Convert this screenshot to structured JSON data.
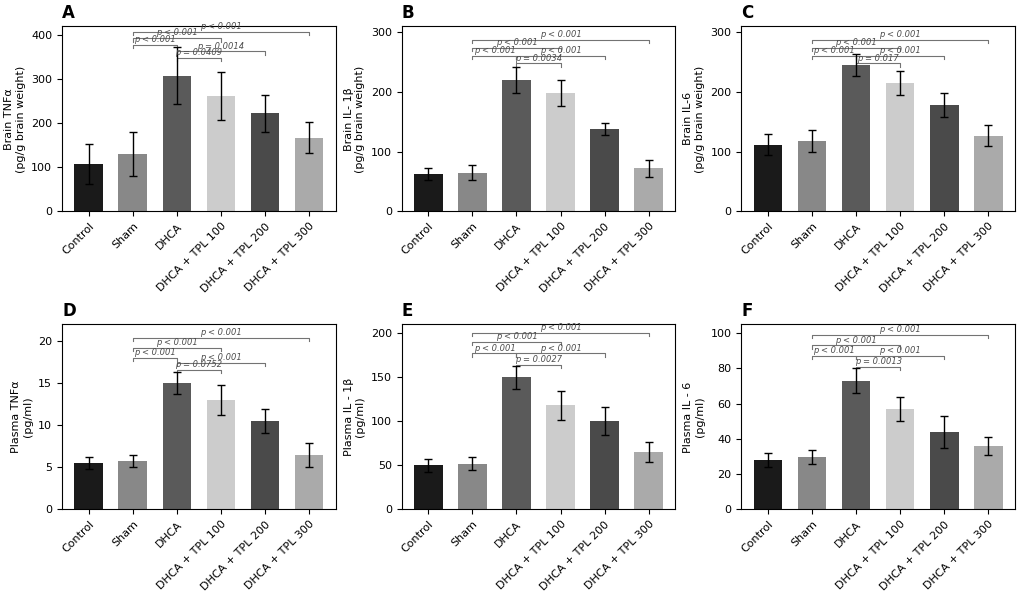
{
  "chart_data": [
    {
      "type": "bar",
      "title": "A",
      "ylabel": "Brain TNFα\n(pg/g brain weight)",
      "categories": [
        "Control",
        "Sham",
        "DHCA",
        "DHCA + TPL 100",
        "DHCA + TPL 200",
        "DHCA + TPL 300"
      ],
      "values": [
        108,
        130,
        308,
        262,
        223,
        167
      ],
      "errors": [
        45,
        50,
        65,
        55,
        42,
        35
      ],
      "colors": [
        "#1a1a1a",
        "#888888",
        "#5a5a5a",
        "#cccccc",
        "#4a4a4a",
        "#aaaaaa"
      ],
      "ylim": [
        0,
        420
      ],
      "yticks": [
        0,
        100,
        200,
        300,
        400
      ],
      "annotations": [
        {
          "from": "Sham",
          "to": "DHCA",
          "y": 378,
          "text": "p < 0.001"
        },
        {
          "from": "Sham",
          "to": "DHCA + TPL 100",
          "y": 393,
          "text": "p < 0.001"
        },
        {
          "from": "DHCA",
          "to": "DHCA + TPL 100",
          "y": 348,
          "text": "p = 0.0409"
        },
        {
          "from": "DHCA",
          "to": "DHCA + TPL 200",
          "y": 363,
          "text": "p = 0.0014"
        },
        {
          "from": "Sham",
          "to": "DHCA + TPL 300",
          "y": 408,
          "text": "p < 0.001"
        }
      ]
    },
    {
      "type": "bar",
      "title": "B",
      "ylabel": "Brain IL- 1β\n(pg/g brain weight)",
      "categories": [
        "Control",
        "Sham",
        "DHCA",
        "DHCA + TPL 100",
        "DHCA + TPL 200",
        "DHCA + TPL 300"
      ],
      "values": [
        62,
        65,
        220,
        198,
        138,
        72
      ],
      "errors": [
        10,
        12,
        22,
        22,
        10,
        14
      ],
      "colors": [
        "#1a1a1a",
        "#888888",
        "#5a5a5a",
        "#cccccc",
        "#4a4a4a",
        "#aaaaaa"
      ],
      "ylim": [
        0,
        310
      ],
      "yticks": [
        0,
        100,
        200,
        300
      ],
      "annotations": [
        {
          "from": "Sham",
          "to": "DHCA",
          "y": 261,
          "text": "p < 0.001"
        },
        {
          "from": "Sham",
          "to": "DHCA + TPL 100",
          "y": 274,
          "text": "p < 0.001"
        },
        {
          "from": "DHCA",
          "to": "DHCA + TPL 100",
          "y": 248,
          "text": "p = 0.0034"
        },
        {
          "from": "DHCA",
          "to": "DHCA + TPL 200",
          "y": 261,
          "text": "p < 0.001"
        },
        {
          "from": "Sham",
          "to": "DHCA + TPL 300",
          "y": 287,
          "text": "p < 0.001"
        }
      ]
    },
    {
      "type": "bar",
      "title": "C",
      "ylabel": "Brain IL-6\n(pg/g brain weight)",
      "categories": [
        "Control",
        "Sham",
        "DHCA",
        "DHCA + TPL 100",
        "DHCA + TPL 200",
        "DHCA + TPL 300"
      ],
      "values": [
        112,
        118,
        245,
        215,
        178,
        127
      ],
      "errors": [
        18,
        18,
        18,
        20,
        20,
        18
      ],
      "colors": [
        "#1a1a1a",
        "#888888",
        "#5a5a5a",
        "#cccccc",
        "#4a4a4a",
        "#aaaaaa"
      ],
      "ylim": [
        0,
        310
      ],
      "yticks": [
        0,
        100,
        200,
        300
      ],
      "annotations": [
        {
          "from": "Sham",
          "to": "DHCA",
          "y": 261,
          "text": "p < 0.001"
        },
        {
          "from": "Sham",
          "to": "DHCA + TPL 100",
          "y": 274,
          "text": "p < 0.001"
        },
        {
          "from": "DHCA",
          "to": "DHCA + TPL 100",
          "y": 248,
          "text": "p = 0.017"
        },
        {
          "from": "DHCA",
          "to": "DHCA + TPL 200",
          "y": 261,
          "text": "p < 0.001"
        },
        {
          "from": "Sham",
          "to": "DHCA + TPL 300",
          "y": 287,
          "text": "p < 0.001"
        }
      ]
    },
    {
      "type": "bar",
      "title": "D",
      "ylabel": "Plasma TNFα\n(pg/ml)",
      "categories": [
        "Control",
        "Sham",
        "DHCA",
        "DHCA + TPL 100",
        "DHCA + TPL 200",
        "DHCA + TPL 300"
      ],
      "values": [
        5.5,
        5.8,
        15.0,
        13.0,
        10.5,
        6.5
      ],
      "errors": [
        0.7,
        0.7,
        1.3,
        1.8,
        1.4,
        1.4
      ],
      "colors": [
        "#1a1a1a",
        "#888888",
        "#5a5a5a",
        "#cccccc",
        "#4a4a4a",
        "#aaaaaa"
      ],
      "ylim": [
        0,
        22
      ],
      "yticks": [
        0,
        5,
        10,
        15,
        20
      ],
      "annotations": [
        {
          "from": "Sham",
          "to": "DHCA",
          "y": 18.0,
          "text": "p < 0.001"
        },
        {
          "from": "Sham",
          "to": "DHCA + TPL 100",
          "y": 19.2,
          "text": "p < 0.001"
        },
        {
          "from": "DHCA",
          "to": "DHCA + TPL 100",
          "y": 16.6,
          "text": "p = 0.0752"
        },
        {
          "from": "DHCA",
          "to": "DHCA + TPL 200",
          "y": 17.4,
          "text": "p < 0.001"
        },
        {
          "from": "Sham",
          "to": "DHCA + TPL 300",
          "y": 20.4,
          "text": "p < 0.001"
        }
      ]
    },
    {
      "type": "bar",
      "title": "E",
      "ylabel": "Plasma IL - 1β\n(pg/ml)",
      "categories": [
        "Control",
        "Sham",
        "DHCA",
        "DHCA + TPL 100",
        "DHCA + TPL 200",
        "DHCA + TPL 300"
      ],
      "values": [
        50,
        52,
        150,
        118,
        100,
        65
      ],
      "errors": [
        7,
        7,
        13,
        16,
        16,
        11
      ],
      "colors": [
        "#1a1a1a",
        "#888888",
        "#5a5a5a",
        "#cccccc",
        "#4a4a4a",
        "#aaaaaa"
      ],
      "ylim": [
        0,
        210
      ],
      "yticks": [
        0,
        50,
        100,
        150,
        200
      ],
      "annotations": [
        {
          "from": "Sham",
          "to": "DHCA",
          "y": 177,
          "text": "p < 0.001"
        },
        {
          "from": "Sham",
          "to": "DHCA + TPL 100",
          "y": 190,
          "text": "p < 0.001"
        },
        {
          "from": "DHCA",
          "to": "DHCA + TPL 100",
          "y": 164,
          "text": "p = 0.0027"
        },
        {
          "from": "DHCA",
          "to": "DHCA + TPL 200",
          "y": 177,
          "text": "p < 0.001"
        },
        {
          "from": "Sham",
          "to": "DHCA + TPL 300",
          "y": 200,
          "text": "p < 0.001"
        }
      ]
    },
    {
      "type": "bar",
      "title": "F",
      "ylabel": "Plasma IL - 6\n(pg/ml)",
      "categories": [
        "Control",
        "Sham",
        "DHCA",
        "DHCA + TPL 100",
        "DHCA + TPL 200",
        "DHCA + TPL 300"
      ],
      "values": [
        28,
        30,
        73,
        57,
        44,
        36
      ],
      "errors": [
        4,
        4,
        7,
        7,
        9,
        5
      ],
      "colors": [
        "#1a1a1a",
        "#888888",
        "#5a5a5a",
        "#cccccc",
        "#4a4a4a",
        "#aaaaaa"
      ],
      "ylim": [
        0,
        105
      ],
      "yticks": [
        0,
        20,
        40,
        60,
        80,
        100
      ],
      "annotations": [
        {
          "from": "Sham",
          "to": "DHCA",
          "y": 87,
          "text": "p < 0.001"
        },
        {
          "from": "Sham",
          "to": "DHCA + TPL 100",
          "y": 93,
          "text": "p < 0.001"
        },
        {
          "from": "DHCA",
          "to": "DHCA + TPL 100",
          "y": 81,
          "text": "p = 0.0013"
        },
        {
          "from": "DHCA",
          "to": "DHCA + TPL 200",
          "y": 87,
          "text": "p < 0.001"
        },
        {
          "from": "Sham",
          "to": "DHCA + TPL 300",
          "y": 99,
          "text": "p < 0.001"
        }
      ]
    }
  ]
}
